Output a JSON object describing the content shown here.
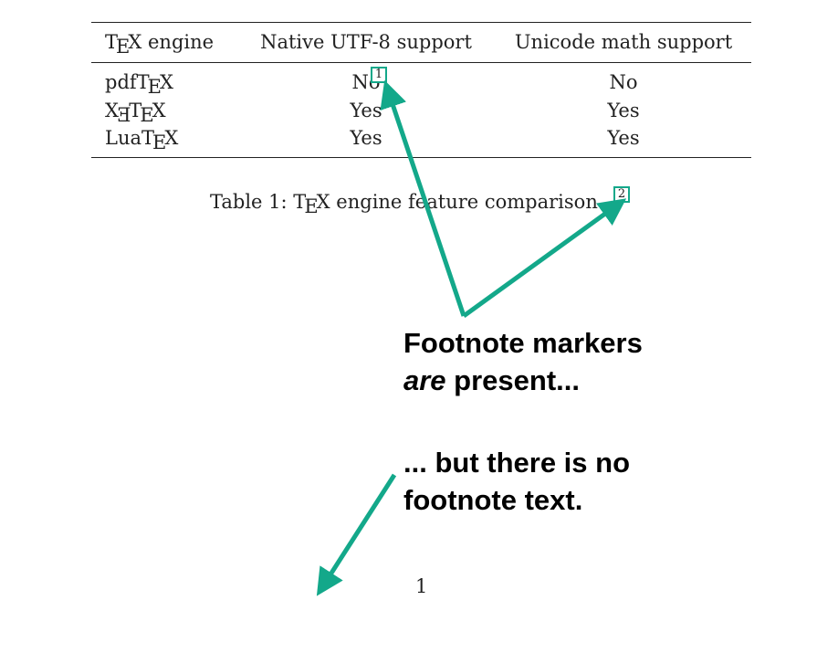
{
  "table": {
    "columns": [
      "TEX engine",
      "Native UTF-8 support",
      "Unicode math support"
    ],
    "rows": [
      {
        "engine": "pdfTEX",
        "utf8": "No",
        "math": "No"
      },
      {
        "engine": "XETEX",
        "utf8": "Yes",
        "math": "Yes"
      },
      {
        "engine": "LuaTEX",
        "utf8": "Yes",
        "math": "Yes"
      }
    ]
  },
  "caption": {
    "label": "Table 1:",
    "text": "TEX engine feature comparison",
    "end": "."
  },
  "footnote_markers": [
    "1",
    "2"
  ],
  "annotations": {
    "first_line1": "Footnote markers",
    "first_emph": "are",
    "first_rest": "present...",
    "second_line1": "... but there is no",
    "second_line2": "footnote text."
  },
  "page_number": "1",
  "colors": {
    "annotation_accent": "#13a88a",
    "text": "#222222"
  }
}
